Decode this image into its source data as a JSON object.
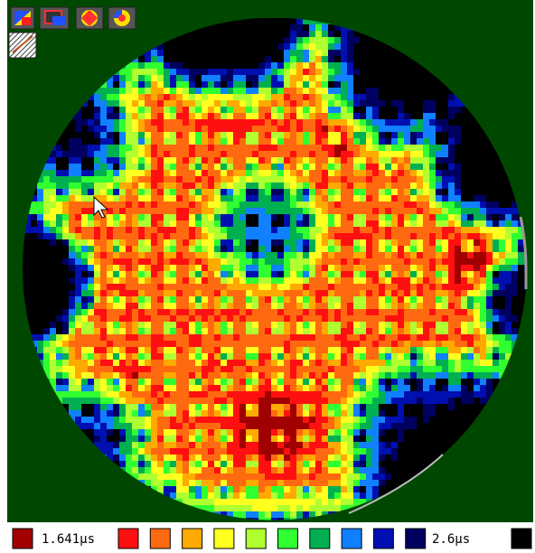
{
  "legend": {
    "min_label": "1.641μs",
    "max_label": "2.6μs",
    "low_color": "#a00000",
    "colors": [
      "#ff1010",
      "#ff6a10",
      "#ffaa00",
      "#ffff20",
      "#b0ff30",
      "#30ff30",
      "#00b050",
      "#1080ff",
      "#0010b0",
      "#000060"
    ],
    "high_color": "#000000"
  },
  "wafer_background": "#004800"
}
